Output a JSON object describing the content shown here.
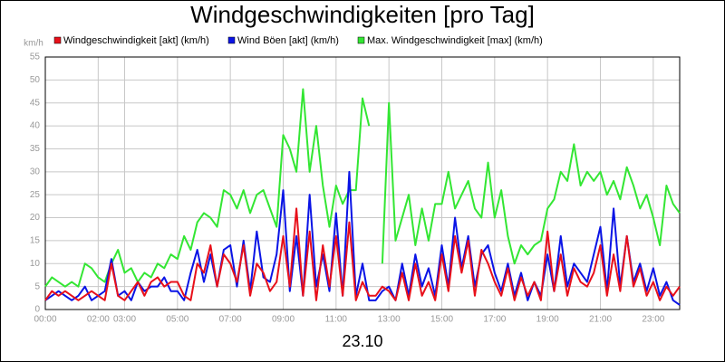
{
  "chart_data": {
    "type": "line",
    "title": "Windgeschwindigkeiten [pro Tag]",
    "y_unit": "km/h",
    "x_label": "23.10",
    "ylim": [
      0,
      55
    ],
    "yticks": [
      0,
      5,
      10,
      15,
      20,
      25,
      30,
      35,
      40,
      45,
      50,
      55
    ],
    "xlim": [
      0,
      24
    ],
    "xticks": [
      {
        "value": 0,
        "label": "00:00"
      },
      {
        "value": 2,
        "label": "02:00"
      },
      {
        "value": 3,
        "label": "03:00"
      },
      {
        "value": 5,
        "label": "05:00"
      },
      {
        "value": 7,
        "label": "07:00"
      },
      {
        "value": 9,
        "label": "09:00"
      },
      {
        "value": 11,
        "label": "11:00"
      },
      {
        "value": 13,
        "label": "13:00"
      },
      {
        "value": 15,
        "label": "15:00"
      },
      {
        "value": 17,
        "label": "17:00"
      },
      {
        "value": 19,
        "label": "19:00"
      },
      {
        "value": 21,
        "label": "21:00"
      },
      {
        "value": 23,
        "label": "23:00"
      }
    ],
    "grid": true,
    "x": [
      0,
      0.25,
      0.5,
      0.75,
      1,
      1.25,
      1.5,
      1.75,
      2,
      2.25,
      2.5,
      2.75,
      3,
      3.25,
      3.5,
      3.75,
      4,
      4.25,
      4.5,
      4.75,
      5,
      5.25,
      5.5,
      5.75,
      6,
      6.25,
      6.5,
      6.75,
      7,
      7.25,
      7.5,
      7.75,
      8,
      8.25,
      8.5,
      8.75,
      9,
      9.25,
      9.5,
      9.75,
      10,
      10.25,
      10.5,
      10.75,
      11,
      11.25,
      11.5,
      11.75,
      12,
      12.25,
      12.5,
      12.75,
      13,
      13.25,
      13.5,
      13.75,
      14,
      14.25,
      14.5,
      14.75,
      15,
      15.25,
      15.5,
      15.75,
      16,
      16.25,
      16.5,
      16.75,
      17,
      17.25,
      17.5,
      17.75,
      18,
      18.25,
      18.5,
      18.75,
      19,
      19.25,
      19.5,
      19.75,
      20,
      20.25,
      20.5,
      20.75,
      21,
      21.25,
      21.5,
      21.75,
      22,
      22.25,
      22.5,
      22.75,
      23,
      23.25,
      23.5,
      23.75,
      24
    ],
    "series": [
      {
        "name": "Windgeschwindigkeit [akt] (km/h)",
        "color": "#e8101a",
        "values": [
          2,
          4,
          3,
          4,
          3,
          2,
          3,
          4,
          3,
          2,
          10,
          3,
          2,
          4,
          6,
          3,
          6,
          7,
          5,
          6,
          6,
          3,
          2,
          10,
          8,
          14,
          5,
          12,
          10,
          6,
          14,
          3,
          10,
          8,
          4,
          6,
          16,
          5,
          22,
          3,
          17,
          2,
          14,
          5,
          16,
          3,
          19,
          2,
          6,
          3,
          3,
          5,
          4,
          2,
          8,
          2,
          10,
          3,
          6,
          2,
          12,
          4,
          16,
          8,
          15,
          3,
          13,
          10,
          6,
          3,
          9,
          2,
          7,
          3,
          6,
          2,
          17,
          4,
          12,
          3,
          9,
          6,
          5,
          8,
          14,
          3,
          12,
          4,
          16,
          5,
          9,
          3,
          6,
          2,
          5,
          3,
          5
        ]
      },
      {
        "name": "Wind Böen [akt] (km/h)",
        "color": "#0a14e6",
        "values": [
          2,
          3,
          4,
          3,
          2,
          3,
          5,
          2,
          3,
          4,
          11,
          3,
          4,
          2,
          6,
          4,
          5,
          5,
          7,
          4,
          4,
          2,
          8,
          13,
          6,
          12,
          5,
          13,
          14,
          5,
          15,
          4,
          17,
          7,
          6,
          12,
          26,
          4,
          16,
          3,
          25,
          5,
          12,
          4,
          21,
          3,
          30,
          3,
          10,
          2,
          2,
          4,
          5,
          2,
          10,
          3,
          12,
          5,
          9,
          3,
          14,
          5,
          20,
          9,
          16,
          5,
          12,
          14,
          8,
          4,
          10,
          3,
          8,
          2,
          6,
          3,
          12,
          4,
          16,
          5,
          10,
          8,
          6,
          12,
          18,
          4,
          22,
          5,
          16,
          6,
          10,
          4,
          9,
          3,
          6,
          2,
          1
        ]
      },
      {
        "name": "Max. Windgeschwindigkeit [max] (km/h)",
        "color": "#33e633",
        "values": [
          5,
          7,
          6,
          5,
          6,
          5,
          10,
          9,
          7,
          6,
          10,
          13,
          8,
          9,
          6,
          8,
          7,
          10,
          9,
          12,
          11,
          16,
          13,
          19,
          21,
          20,
          18,
          26,
          25,
          22,
          26,
          21,
          25,
          26,
          22,
          18,
          38,
          35,
          30,
          48,
          30,
          40,
          27,
          18,
          27,
          23,
          26,
          26,
          46,
          40,
          null,
          10,
          45,
          15,
          20,
          25,
          14,
          22,
          15,
          23,
          23,
          30,
          22,
          25,
          28,
          22,
          20,
          32,
          20,
          26,
          16,
          10,
          14,
          12,
          14,
          15,
          22,
          24,
          30,
          28,
          36,
          27,
          30,
          28,
          30,
          25,
          28,
          24,
          31,
          27,
          22,
          25,
          20,
          14,
          27,
          23,
          21
        ]
      }
    ]
  }
}
